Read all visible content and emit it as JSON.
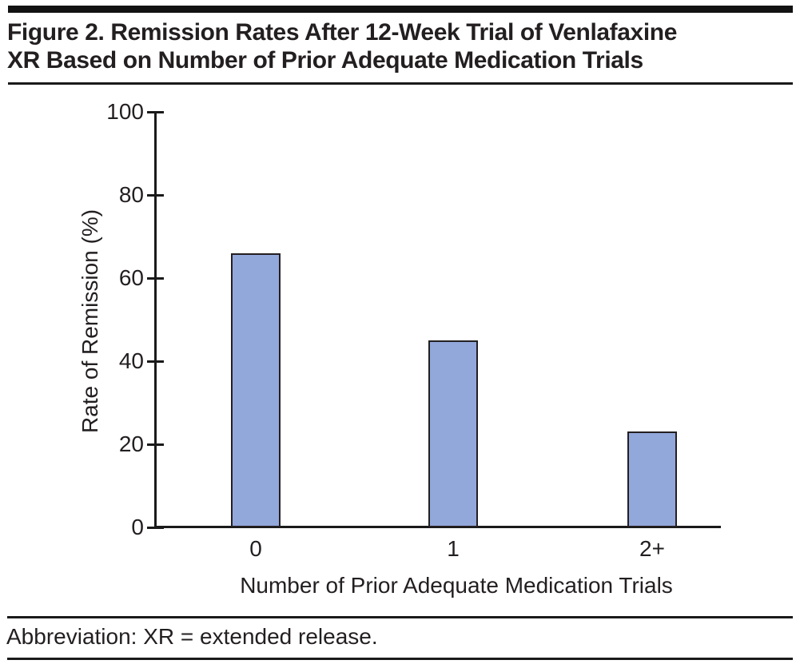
{
  "figure": {
    "title_lines": [
      "Figure 2. Remission Rates After 12-Week Trial of Venlafaxine",
      "XR Based on Number of Prior Adequate Medication Trials"
    ],
    "footnote": "Abbreviation: XR = extended release."
  },
  "chart_data": {
    "type": "bar",
    "categories": [
      "0",
      "1",
      "2+"
    ],
    "values": [
      66,
      45,
      23
    ],
    "title": "Figure 2. Remission Rates After 12-Week Trial of Venlafaxine XR Based on Number of Prior Adequate Medication Trials",
    "xlabel": "Number of Prior Adequate Medication Trials",
    "ylabel": "Rate of Remission (%)",
    "ylim": [
      0,
      100
    ],
    "yticks": [
      0,
      20,
      40,
      60,
      80,
      100
    ],
    "grid": false,
    "legend": false,
    "bar_fill": "#92a7da",
    "bar_border": "#231f20",
    "axis_color": "#1a1a1a",
    "text_color": "#231f20",
    "background": "#ffffff"
  }
}
